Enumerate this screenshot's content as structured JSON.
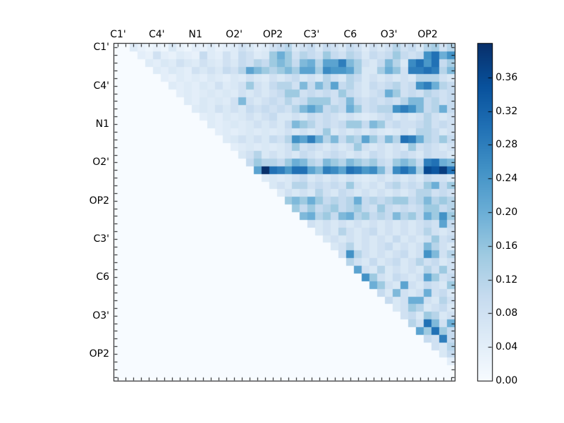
{
  "chart_data": {
    "type": "heatmap",
    "title": "",
    "xlabel": "",
    "ylabel": "",
    "n": 44,
    "tick_labels": [
      "C1'",
      "C4'",
      "N1",
      "O2'",
      "OP2",
      "C3'",
      "C6",
      "O3'",
      "OP2"
    ],
    "tick_positions": [
      0,
      5,
      10,
      15,
      20,
      25,
      30,
      35,
      40
    ],
    "colormap": "Blues",
    "vmin": 0.0,
    "vmax": 0.4,
    "colorbar_ticks": [
      {
        "value": 0.0,
        "label": "0.00"
      },
      {
        "value": 0.04,
        "label": "0.04"
      },
      {
        "value": 0.08,
        "label": "0.08"
      },
      {
        "value": 0.12,
        "label": "0.12"
      },
      {
        "value": 0.16,
        "label": "0.16"
      },
      {
        "value": 0.2,
        "label": "0.20"
      },
      {
        "value": 0.24,
        "label": "0.24"
      },
      {
        "value": 0.28,
        "label": "0.28"
      },
      {
        "value": 0.32,
        "label": "0.32"
      },
      {
        "value": 0.36,
        "label": "0.36"
      }
    ],
    "colors": {
      "figure_bg": "#ffffff",
      "axes_bg": "#f7fbff",
      "spine": "#000000",
      "tick": "#000000",
      "colormap_stops": [
        [
          0.0,
          "#f7fbff"
        ],
        [
          0.125,
          "#deebf7"
        ],
        [
          0.25,
          "#c6dbef"
        ],
        [
          0.375,
          "#9ecae1"
        ],
        [
          0.5,
          "#6baed6"
        ],
        [
          0.625,
          "#4292c6"
        ],
        [
          0.75,
          "#2171b5"
        ],
        [
          0.875,
          "#08519c"
        ],
        [
          1.0,
          "#08306b"
        ]
      ]
    },
    "matrix_rows": [
      {
        "start": 2,
        "v": [
          0.05,
          0.03,
          0.02,
          0.03,
          0.02,
          0.06,
          0.03,
          0.02,
          0.04,
          0.03,
          0.05,
          0.03,
          0.04,
          0.05,
          0.08,
          0.06,
          0.04,
          0.05,
          0.08,
          0.1,
          0.12,
          0.06,
          0.08,
          0.1,
          0.06,
          0.1,
          0.08,
          0.06,
          0.1,
          0.08,
          0.05,
          0.08,
          0.06,
          0.08,
          0.12,
          0.08,
          0.1,
          0.06,
          0.12,
          0.14,
          0.08,
          0.12
        ]
      },
      {
        "start": 3,
        "v": [
          0.04,
          0.03,
          0.08,
          0.04,
          0.03,
          0.05,
          0.04,
          0.03,
          0.1,
          0.05,
          0.04,
          0.08,
          0.05,
          0.1,
          0.08,
          0.05,
          0.06,
          0.15,
          0.2,
          0.15,
          0.08,
          0.12,
          0.1,
          0.08,
          0.15,
          0.1,
          0.08,
          0.12,
          0.1,
          0.06,
          0.1,
          0.08,
          0.1,
          0.15,
          0.1,
          0.08,
          0.1,
          0.25,
          0.3,
          0.2,
          0.25
        ]
      },
      {
        "start": 4,
        "v": [
          0.05,
          0.04,
          0.06,
          0.05,
          0.08,
          0.06,
          0.05,
          0.08,
          0.06,
          0.05,
          0.08,
          0.06,
          0.1,
          0.08,
          0.12,
          0.1,
          0.15,
          0.18,
          0.15,
          0.1,
          0.18,
          0.2,
          0.12,
          0.22,
          0.22,
          0.28,
          0.18,
          0.14,
          0.08,
          0.06,
          0.1,
          0.18,
          0.12,
          0.06,
          0.26,
          0.3,
          0.24,
          0.3,
          0.1,
          0.14
        ]
      },
      {
        "start": 5,
        "v": [
          0.05,
          0.04,
          0.06,
          0.05,
          0.04,
          0.08,
          0.06,
          0.08,
          0.06,
          0.1,
          0.08,
          0.12,
          0.22,
          0.18,
          0.15,
          0.12,
          0.15,
          0.18,
          0.14,
          0.22,
          0.22,
          0.14,
          0.26,
          0.24,
          0.24,
          0.22,
          0.14,
          0.06,
          0.06,
          0.14,
          0.2,
          0.16,
          0.08,
          0.28,
          0.28,
          0.3,
          0.28,
          0.12,
          0.18
        ]
      },
      {
        "start": 6,
        "v": [
          0.04,
          0.03,
          0.05,
          0.04,
          0.05,
          0.04,
          0.06,
          0.05,
          0.04,
          0.06,
          0.05,
          0.08,
          0.06,
          0.05,
          0.08,
          0.06,
          0.08,
          0.1,
          0.06,
          0.08,
          0.06,
          0.12,
          0.08,
          0.06,
          0.12,
          0.1,
          0.06,
          0.08,
          0.06,
          0.08,
          0.06,
          0.08,
          0.06,
          0.12,
          0.12,
          0.12,
          0.08,
          0.06
        ]
      },
      {
        "start": 7,
        "v": [
          0.05,
          0.04,
          0.05,
          0.04,
          0.06,
          0.05,
          0.08,
          0.05,
          0.06,
          0.08,
          0.15,
          0.08,
          0.06,
          0.1,
          0.12,
          0.12,
          0.08,
          0.18,
          0.1,
          0.18,
          0.12,
          0.22,
          0.1,
          0.12,
          0.08,
          0.06,
          0.1,
          0.08,
          0.1,
          0.12,
          0.08,
          0.1,
          0.25,
          0.28,
          0.2,
          0.12,
          0.1
        ]
      },
      {
        "start": 8,
        "v": [
          0.04,
          0.05,
          0.04,
          0.05,
          0.06,
          0.05,
          0.06,
          0.05,
          0.08,
          0.06,
          0.08,
          0.06,
          0.08,
          0.1,
          0.15,
          0.15,
          0.08,
          0.1,
          0.08,
          0.1,
          0.08,
          0.15,
          0.1,
          0.08,
          0.06,
          0.08,
          0.1,
          0.2,
          0.15,
          0.08,
          0.1,
          0.08,
          0.12,
          0.1,
          0.08,
          0.1
        ]
      },
      {
        "start": 9,
        "v": [
          0.05,
          0.04,
          0.06,
          0.05,
          0.06,
          0.05,
          0.08,
          0.18,
          0.08,
          0.06,
          0.08,
          0.1,
          0.08,
          0.12,
          0.08,
          0.1,
          0.15,
          0.15,
          0.15,
          0.08,
          0.1,
          0.18,
          0.1,
          0.08,
          0.1,
          0.08,
          0.1,
          0.08,
          0.12,
          0.18,
          0.18,
          0.1,
          0.12,
          0.08,
          0.1
        ]
      },
      {
        "start": 10,
        "v": [
          0.05,
          0.06,
          0.05,
          0.08,
          0.06,
          0.08,
          0.06,
          0.1,
          0.08,
          0.1,
          0.08,
          0.1,
          0.08,
          0.12,
          0.18,
          0.22,
          0.18,
          0.1,
          0.12,
          0.1,
          0.2,
          0.15,
          0.08,
          0.1,
          0.12,
          0.12,
          0.25,
          0.28,
          0.25,
          0.18,
          0.1,
          0.12,
          0.2,
          0.1
        ]
      },
      {
        "start": 11,
        "v": [
          0.04,
          0.05,
          0.04,
          0.06,
          0.05,
          0.06,
          0.08,
          0.06,
          0.08,
          0.1,
          0.06,
          0.06,
          0.08,
          0.06,
          0.1,
          0.08,
          0.1,
          0.08,
          0.06,
          0.08,
          0.06,
          0.05,
          0.06,
          0.08,
          0.1,
          0.06,
          0.08,
          0.06,
          0.08,
          0.12,
          0.08,
          0.06,
          0.08
        ]
      },
      {
        "start": 12,
        "v": [
          0.05,
          0.04,
          0.05,
          0.06,
          0.05,
          0.06,
          0.08,
          0.06,
          0.08,
          0.06,
          0.1,
          0.18,
          0.15,
          0.12,
          0.08,
          0.1,
          0.08,
          0.1,
          0.15,
          0.15,
          0.1,
          0.18,
          0.15,
          0.08,
          0.1,
          0.08,
          0.08,
          0.1,
          0.12,
          0.08,
          0.1,
          0.08
        ]
      },
      {
        "start": 13,
        "v": [
          0.04,
          0.05,
          0.04,
          0.05,
          0.06,
          0.05,
          0.06,
          0.05,
          0.06,
          0.08,
          0.06,
          0.08,
          0.06,
          0.08,
          0.15,
          0.06,
          0.08,
          0.06,
          0.08,
          0.06,
          0.08,
          0.06,
          0.05,
          0.06,
          0.08,
          0.06,
          0.12,
          0.12,
          0.1,
          0.06,
          0.08
        ]
      },
      {
        "start": 14,
        "v": [
          0.05,
          0.06,
          0.08,
          0.06,
          0.08,
          0.06,
          0.1,
          0.08,
          0.12,
          0.25,
          0.22,
          0.28,
          0.2,
          0.12,
          0.18,
          0.1,
          0.15,
          0.12,
          0.22,
          0.15,
          0.1,
          0.18,
          0.12,
          0.3,
          0.28,
          0.2,
          0.12,
          0.1,
          0.15,
          0.1
        ]
      },
      {
        "start": 15,
        "v": [
          0.04,
          0.05,
          0.06,
          0.05,
          0.06,
          0.05,
          0.06,
          0.08,
          0.15,
          0.08,
          0.1,
          0.08,
          0.06,
          0.08,
          0.06,
          0.08,
          0.15,
          0.08,
          0.06,
          0.08,
          0.06,
          0.08,
          0.06,
          0.15,
          0.08,
          0.1,
          0.08,
          0.06,
          0.08
        ]
      },
      {
        "start": 16,
        "v": [
          0.06,
          0.08,
          0.12,
          0.06,
          0.08,
          0.06,
          0.08,
          0.06,
          0.1,
          0.08,
          0.06,
          0.08,
          0.1,
          0.08,
          0.06,
          0.08,
          0.06,
          0.1,
          0.08,
          0.06,
          0.08,
          0.1,
          0.08,
          0.06,
          0.1,
          0.08,
          0.08,
          0.06
        ]
      },
      {
        "start": 17,
        "v": [
          0.1,
          0.15,
          0.12,
          0.12,
          0.1,
          0.15,
          0.2,
          0.18,
          0.12,
          0.1,
          0.18,
          0.15,
          0.12,
          0.18,
          0.15,
          0.12,
          0.15,
          0.1,
          0.08,
          0.15,
          0.18,
          0.15,
          0.1,
          0.28,
          0.3,
          0.2,
          0.18
        ]
      },
      {
        "start": 18,
        "v": [
          0.22,
          0.4,
          0.3,
          0.28,
          0.24,
          0.3,
          0.3,
          0.22,
          0.18,
          0.28,
          0.26,
          0.22,
          0.3,
          0.28,
          0.24,
          0.26,
          0.18,
          0.1,
          0.26,
          0.3,
          0.26,
          0.14,
          0.36,
          0.34,
          0.38,
          0.3
        ]
      },
      {
        "start": 19,
        "v": [
          0.05,
          0.06,
          0.05,
          0.06,
          0.08,
          0.1,
          0.06,
          0.08,
          0.06,
          0.08,
          0.06,
          0.08,
          0.06,
          0.05,
          0.06,
          0.08,
          0.06,
          0.08,
          0.06,
          0.08,
          0.06,
          0.1,
          0.08,
          0.08,
          0.06
        ]
      },
      {
        "start": 20,
        "v": [
          0.06,
          0.08,
          0.06,
          0.12,
          0.12,
          0.08,
          0.1,
          0.08,
          0.1,
          0.08,
          0.15,
          0.08,
          0.06,
          0.08,
          0.06,
          0.1,
          0.12,
          0.08,
          0.1,
          0.08,
          0.15,
          0.2,
          0.1,
          0.15
        ]
      },
      {
        "start": 21,
        "v": [
          0.05,
          0.08,
          0.06,
          0.08,
          0.06,
          0.12,
          0.08,
          0.06,
          0.1,
          0.08,
          0.06,
          0.08,
          0.06,
          0.08,
          0.06,
          0.08,
          0.06,
          0.08,
          0.12,
          0.12,
          0.08,
          0.1,
          0.08
        ]
      },
      {
        "start": 22,
        "v": [
          0.15,
          0.18,
          0.15,
          0.2,
          0.15,
          0.1,
          0.12,
          0.1,
          0.12,
          0.2,
          0.1,
          0.12,
          0.1,
          0.12,
          0.15,
          0.15,
          0.1,
          0.12,
          0.18,
          0.12,
          0.15,
          0.12
        ]
      },
      {
        "start": 23,
        "v": [
          0.15,
          0.1,
          0.15,
          0.1,
          0.12,
          0.15,
          0.1,
          0.12,
          0.15,
          0.1,
          0.08,
          0.15,
          0.1,
          0.08,
          0.1,
          0.08,
          0.1,
          0.15,
          0.15,
          0.1,
          0.12
        ]
      },
      {
        "start": 24,
        "v": [
          0.18,
          0.2,
          0.12,
          0.15,
          0.1,
          0.18,
          0.2,
          0.12,
          0.15,
          0.1,
          0.12,
          0.1,
          0.18,
          0.12,
          0.15,
          0.1,
          0.2,
          0.15,
          0.25,
          0.15
        ]
      },
      {
        "start": 25,
        "v": [
          0.08,
          0.06,
          0.08,
          0.06,
          0.08,
          0.06,
          0.08,
          0.06,
          0.08,
          0.06,
          0.08,
          0.06,
          0.08,
          0.06,
          0.08,
          0.1,
          0.08,
          0.22,
          0.1
        ]
      },
      {
        "start": 26,
        "v": [
          0.06,
          0.08,
          0.06,
          0.12,
          0.08,
          0.06,
          0.08,
          0.1,
          0.06,
          0.08,
          0.06,
          0.08,
          0.06,
          0.08,
          0.12,
          0.08,
          0.06,
          0.08
        ]
      },
      {
        "start": 27,
        "v": [
          0.06,
          0.08,
          0.06,
          0.08,
          0.06,
          0.08,
          0.06,
          0.08,
          0.06,
          0.1,
          0.06,
          0.08,
          0.06,
          0.08,
          0.15,
          0.08,
          0.1
        ]
      },
      {
        "start": 28,
        "v": [
          0.06,
          0.08,
          0.12,
          0.06,
          0.08,
          0.06,
          0.08,
          0.1,
          0.06,
          0.08,
          0.06,
          0.08,
          0.18,
          0.12,
          0.08,
          0.06
        ]
      },
      {
        "start": 29,
        "v": [
          0.08,
          0.25,
          0.12,
          0.08,
          0.06,
          0.08,
          0.06,
          0.08,
          0.1,
          0.06,
          0.08,
          0.25,
          0.18,
          0.08,
          0.12
        ]
      },
      {
        "start": 30,
        "v": [
          0.12,
          0.08,
          0.06,
          0.1,
          0.06,
          0.08,
          0.1,
          0.06,
          0.08,
          0.12,
          0.08,
          0.1,
          0.06,
          0.08
        ]
      },
      {
        "start": 31,
        "v": [
          0.22,
          0.08,
          0.06,
          0.12,
          0.06,
          0.08,
          0.06,
          0.08,
          0.06,
          0.12,
          0.08,
          0.15,
          0.08
        ]
      },
      {
        "start": 32,
        "v": [
          0.25,
          0.15,
          0.08,
          0.06,
          0.1,
          0.08,
          0.06,
          0.08,
          0.22,
          0.15,
          0.08,
          0.1
        ]
      },
      {
        "start": 33,
        "v": [
          0.2,
          0.15,
          0.08,
          0.06,
          0.22,
          0.08,
          0.06,
          0.1,
          0.08,
          0.06,
          0.15
        ]
      },
      {
        "start": 34,
        "v": [
          0.1,
          0.06,
          0.18,
          0.08,
          0.06,
          0.08,
          0.2,
          0.08,
          0.1,
          0.06
        ]
      },
      {
        "start": 35,
        "v": [
          0.1,
          0.06,
          0.08,
          0.2,
          0.2,
          0.08,
          0.06,
          0.12,
          0.08
        ]
      },
      {
        "start": 36,
        "v": [
          0.06,
          0.08,
          0.15,
          0.12,
          0.06,
          0.08,
          0.1,
          0.06
        ]
      },
      {
        "start": 37,
        "v": [
          0.08,
          0.1,
          0.06,
          0.15,
          0.12,
          0.06,
          0.08
        ]
      },
      {
        "start": 38,
        "v": [
          0.12,
          0.08,
          0.3,
          0.18,
          0.08,
          0.2
        ]
      },
      {
        "start": 39,
        "v": [
          0.22,
          0.15,
          0.3,
          0.15,
          0.1
        ]
      },
      {
        "start": 40,
        "v": [
          0.1,
          0.08,
          0.28,
          0.1
        ]
      },
      {
        "start": 41,
        "v": [
          0.08,
          0.06,
          0.12
        ]
      },
      {
        "start": 42,
        "v": [
          0.06,
          0.1
        ]
      },
      {
        "start": 43,
        "v": [
          0.04
        ]
      },
      {
        "start": 44,
        "v": []
      },
      {
        "start": 44,
        "v": []
      }
    ]
  }
}
